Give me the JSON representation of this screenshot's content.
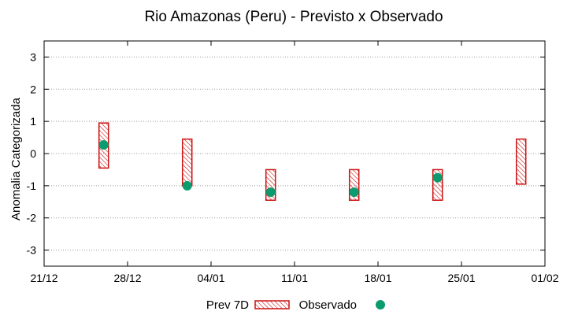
{
  "chart_data": {
    "type": "range-bar+scatter",
    "title": "Rio Amazonas (Peru) - Previsto x Observado",
    "ylabel": "Anomalia Categorizada",
    "xlabel": "",
    "ylim": [
      -3.5,
      3.5
    ],
    "yticks": [
      "3",
      "2",
      "1",
      "0",
      "-1",
      "-2",
      "-3"
    ],
    "xticks": [
      "21/12",
      "28/12",
      "04/01",
      "11/01",
      "18/01",
      "25/01",
      "01/02"
    ],
    "grid": "horizontal dotted",
    "legend_position": "bottom",
    "series": [
      {
        "name": "Prev 7D",
        "kind": "range",
        "color": "#cc1111",
        "points": [
          {
            "x_day": 5,
            "low": -0.45,
            "high": 0.95
          },
          {
            "x_day": 12,
            "low": -1.0,
            "high": 0.45
          },
          {
            "x_day": 19,
            "low": -1.45,
            "high": -0.5
          },
          {
            "x_day": 26,
            "low": -1.45,
            "high": -0.5
          },
          {
            "x_day": 33,
            "low": -1.45,
            "high": -0.5
          },
          {
            "x_day": 40,
            "low": -0.95,
            "high": 0.45
          }
        ]
      },
      {
        "name": "Observado",
        "kind": "point",
        "color": "#0a9b6e",
        "points": [
          {
            "x_day": 5,
            "y": 0.27
          },
          {
            "x_day": 12,
            "y": -1.0
          },
          {
            "x_day": 19,
            "y": -1.2
          },
          {
            "x_day": 26,
            "y": -1.2
          },
          {
            "x_day": 33,
            "y": -0.75
          }
        ]
      }
    ],
    "x_day_range": [
      0,
      42
    ],
    "xtick_days": [
      0,
      7,
      14,
      21,
      28,
      35,
      42
    ]
  }
}
